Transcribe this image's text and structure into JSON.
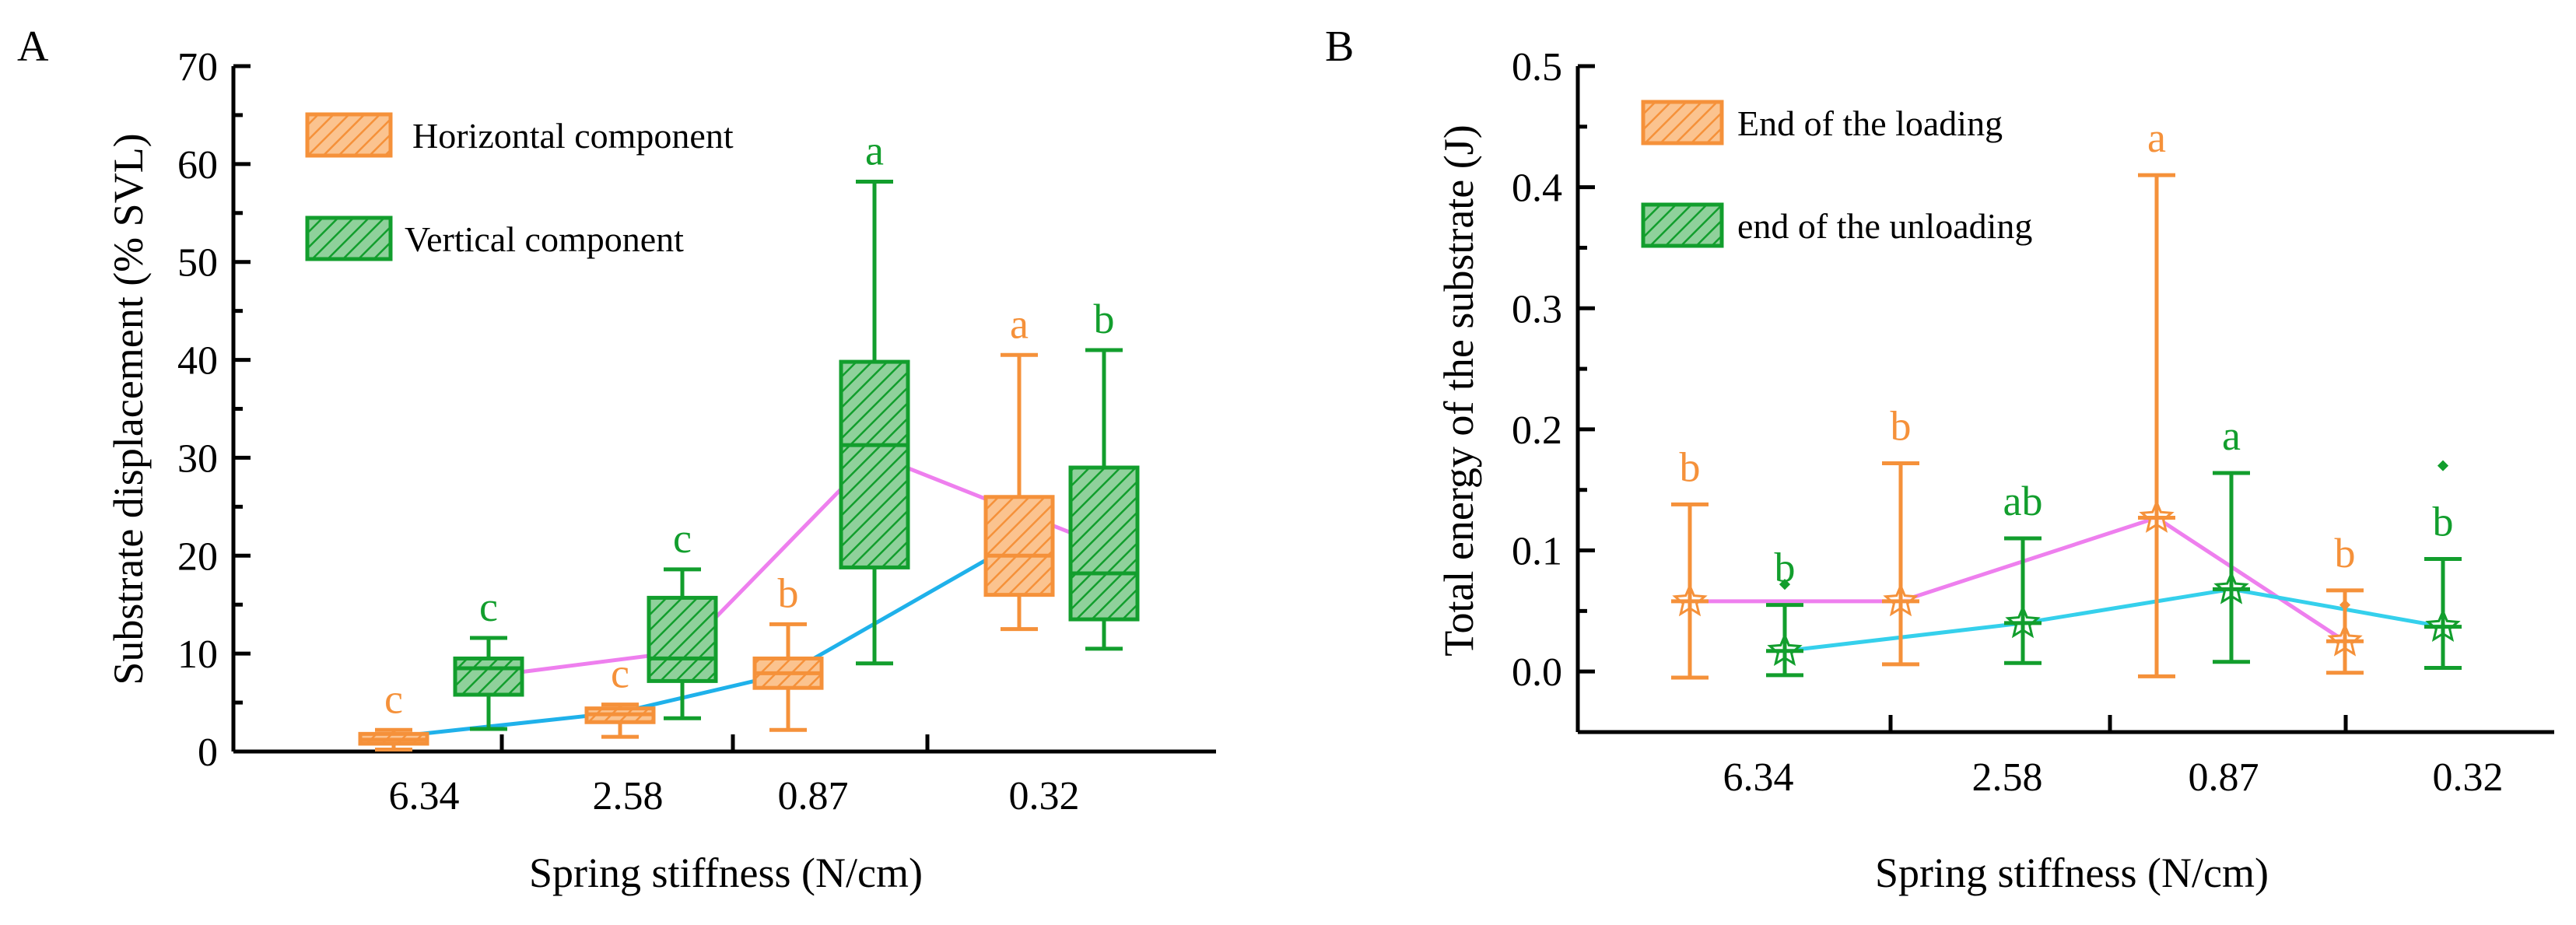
{
  "chart_data": [
    {
      "panel_label": "A",
      "type": "box",
      "xlabel": "Spring stiffness (N/cm)",
      "ylabel": "Substrate displacement (% SVL)",
      "ylim": [
        0,
        70
      ],
      "yticks": [
        0,
        10,
        20,
        30,
        40,
        50,
        60,
        70
      ],
      "categories": [
        "6.34",
        "2.58",
        "0.87",
        "0.32"
      ],
      "legend": {
        "placement": "top-left",
        "entries": [
          "Horizontal component",
          "Vertical component"
        ]
      },
      "colors": {
        "horizontal": "#F5913A",
        "vertical": "#129E2D",
        "trend_vertical": "#EE7FEE",
        "trend_horizontal": "#1FB1EA"
      },
      "series": [
        {
          "name": "Horizontal component",
          "boxes": [
            {
              "category": "6.34",
              "min": 0.2,
              "q1": 0.8,
              "median": 1.2,
              "mean": 1.5,
              "q3": 1.8,
              "max": 2.2,
              "letter": "c"
            },
            {
              "category": "2.58",
              "min": 1.5,
              "q1": 3.0,
              "median": 3.8,
              "mean": 4.0,
              "q3": 4.4,
              "max": 4.8,
              "letter": "c"
            },
            {
              "category": "0.87",
              "min": 2.2,
              "q1": 6.5,
              "median": 8.0,
              "mean": 8.0,
              "q3": 9.5,
              "max": 13.0,
              "letter": "b"
            },
            {
              "category": "0.32",
              "min": 12.5,
              "q1": 16.0,
              "median": 20.0,
              "mean": 21.5,
              "q3": 26.0,
              "max": 40.5,
              "letter": "a"
            }
          ]
        },
        {
          "name": "Vertical component",
          "boxes": [
            {
              "category": "6.34",
              "min": 2.3,
              "q1": 5.8,
              "median": 8.5,
              "mean": 7.7,
              "q3": 9.5,
              "max": 11.6,
              "letter": "c"
            },
            {
              "category": "2.58",
              "min": 3.4,
              "q1": 7.2,
              "median": 9.5,
              "mean": 10.2,
              "q3": 15.7,
              "max": 18.6,
              "letter": "c"
            },
            {
              "category": "0.87",
              "min": 9.0,
              "q1": 18.8,
              "median": 31.3,
              "mean": 30.3,
              "q3": 39.8,
              "max": 58.2,
              "letter": "a"
            },
            {
              "category": "0.32",
              "min": 10.5,
              "q1": 13.5,
              "median": 18.2,
              "mean": 21.0,
              "q3": 29.0,
              "max": 41.0,
              "letter": "b"
            }
          ]
        }
      ]
    },
    {
      "panel_label": "B",
      "type": "errorbar",
      "xlabel": "Spring stiffness (N/cm)",
      "ylabel": "Total energy of the substrate (J)",
      "ylim": [
        -0.05,
        0.5
      ],
      "yticks": [
        "0.0",
        "0.1",
        "0.2",
        "0.3",
        "0.4",
        "0.5"
      ],
      "categories": [
        "6.34",
        "2.58",
        "0.87",
        "0.32"
      ],
      "legend": {
        "placement": "top-left",
        "entries": [
          "End of the loading",
          "end of the unloading"
        ]
      },
      "colors": {
        "loading": "#F5913A",
        "unloading": "#129E2D",
        "trend_loading": "#EE7FEE",
        "trend_unloading": "#35D0EC"
      },
      "series": [
        {
          "name": "End of the loading",
          "points": [
            {
              "category": "6.34",
              "mean": 0.058,
              "low": -0.005,
              "high": 0.138,
              "letter": "b",
              "outlier": null
            },
            {
              "category": "2.58",
              "mean": 0.058,
              "low": 0.006,
              "high": 0.172,
              "letter": "b",
              "outlier": null
            },
            {
              "category": "0.87",
              "mean": 0.127,
              "low": -0.004,
              "high": 0.41,
              "letter": "a",
              "outlier": null
            },
            {
              "category": "0.32",
              "mean": 0.025,
              "low": -0.001,
              "high": 0.067,
              "letter": "b",
              "outlier": 0.055
            }
          ]
        },
        {
          "name": "end of the unloading",
          "points": [
            {
              "category": "6.34",
              "mean": 0.017,
              "low": -0.003,
              "high": 0.055,
              "letter": "b",
              "outlier": 0.072
            },
            {
              "category": "2.58",
              "mean": 0.04,
              "low": 0.007,
              "high": 0.11,
              "letter": "ab",
              "outlier": null
            },
            {
              "category": "0.87",
              "mean": 0.068,
              "low": 0.008,
              "high": 0.164,
              "letter": "a",
              "outlier": null
            },
            {
              "category": "0.32",
              "mean": 0.037,
              "low": 0.003,
              "high": 0.093,
              "letter": "b",
              "outlier": 0.17
            }
          ]
        }
      ]
    }
  ]
}
